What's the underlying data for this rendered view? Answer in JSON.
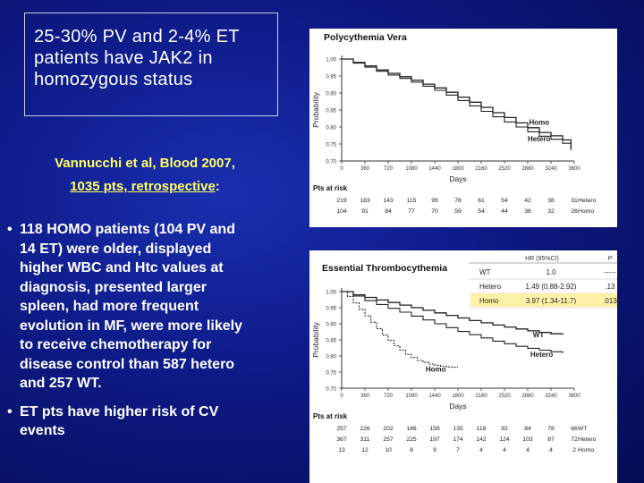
{
  "slide": {
    "title_lines": [
      "25-30% PV and 2-4% ET",
      "patients have JAK2 in",
      "homozygous status"
    ],
    "citation_lines": [
      "Vannucchi et al, Blood 2007,",
      "1035 pts, retrospective"
    ],
    "citation_colon": ":",
    "bullet_marker": "•",
    "bullets": [
      {
        "lines": [
          "118 HOMO patients (104 PV and",
          "14 ET) were older, displayed",
          "higher WBC and Htc values at",
          "diagnosis, presented larger",
          "spleen, had more frequent",
          "evolution in MF, were more likely",
          "to receive chemotherapy for",
          "disease control than 587 hetero",
          "and 257 WT."
        ]
      },
      {
        "lines": [
          "ET pts have higher risk of CV",
          "events"
        ]
      }
    ]
  },
  "chart_data": [
    {
      "type": "line",
      "title": "Polycythemia Vera",
      "xlabel": "Days",
      "ylabel": "Probability",
      "xlim": [
        0,
        3600
      ],
      "ylim": [
        0.7,
        1.0
      ],
      "x_ticks": [
        "0",
        "360",
        "720",
        "1080",
        "1440",
        "1800",
        "2160",
        "2520",
        "2880",
        "3240",
        "3600"
      ],
      "y_ticks": [
        "1.00",
        "0.95",
        "0.90",
        "0.85",
        "0.80",
        "0.75",
        "0.70"
      ],
      "series": [
        {
          "name": "Homo",
          "x": [
            0,
            180,
            360,
            540,
            720,
            900,
            1080,
            1260,
            1440,
            1620,
            1800,
            1980,
            2160,
            2340,
            2520,
            2700,
            2880,
            3060,
            3240,
            3420,
            3550
          ],
          "y": [
            1.0,
            0.99,
            0.98,
            0.968,
            0.958,
            0.948,
            0.938,
            0.926,
            0.915,
            0.902,
            0.888,
            0.873,
            0.858,
            0.842,
            0.828,
            0.812,
            0.798,
            0.784,
            0.774,
            0.762,
            0.732
          ]
        },
        {
          "name": "Hetero",
          "x": [
            0,
            180,
            360,
            540,
            720,
            900,
            1080,
            1260,
            1440,
            1620,
            1800,
            1980,
            2160,
            2340,
            2520,
            2700,
            2880,
            3060,
            3240,
            3420,
            3550
          ],
          "y": [
            1.0,
            0.988,
            0.976,
            0.964,
            0.953,
            0.943,
            0.932,
            0.92,
            0.908,
            0.894,
            0.878,
            0.862,
            0.846,
            0.83,
            0.815,
            0.8,
            0.786,
            0.773,
            0.764,
            0.752,
            0.742
          ]
        }
      ],
      "curve_labels": [
        {
          "text": "Homo",
          "x": 2900,
          "y": 0.807
        },
        {
          "text": "Hetero",
          "x": 2880,
          "y": 0.758
        }
      ],
      "risk_table": {
        "title": "Pts at risk",
        "rows": [
          {
            "label": "Hetero",
            "values": [
              "219",
              "183",
              "143",
              "115",
              "99",
              "78",
              "61",
              "54",
              "42",
              "38",
              "31"
            ]
          },
          {
            "label": "Homo",
            "values": [
              "104",
              "91",
              "84",
              "77",
              "70",
              "59",
              "54",
              "44",
              "36",
              "32",
              "26"
            ]
          }
        ]
      }
    },
    {
      "type": "line",
      "title": "Essential Thrombocythemia",
      "xlabel": "Days",
      "ylabel": "Probability",
      "xlim": [
        0,
        3600
      ],
      "ylim": [
        0.7,
        1.0
      ],
      "x_ticks": [
        "0",
        "360",
        "720",
        "1080",
        "1440",
        "1800",
        "2160",
        "2520",
        "2880",
        "3240",
        "3600"
      ],
      "y_ticks": [
        "1.00",
        "0.95",
        "0.90",
        "0.85",
        "0.80",
        "0.75",
        "0.70"
      ],
      "series": [
        {
          "name": "WT",
          "x": [
            0,
            180,
            360,
            540,
            720,
            900,
            1080,
            1260,
            1440,
            1620,
            1800,
            1980,
            2160,
            2340,
            2520,
            2700,
            2880,
            3060,
            3240,
            3420
          ],
          "y": [
            1.0,
            0.99,
            0.982,
            0.974,
            0.966,
            0.958,
            0.95,
            0.942,
            0.934,
            0.926,
            0.918,
            0.91,
            0.903,
            0.896,
            0.89,
            0.884,
            0.878,
            0.873,
            0.869,
            0.866
          ]
        },
        {
          "name": "Hetero",
          "x": [
            0,
            180,
            360,
            540,
            720,
            900,
            1080,
            1260,
            1440,
            1620,
            1800,
            1980,
            2160,
            2340,
            2520,
            2700,
            2880,
            3060,
            3240,
            3420
          ],
          "y": [
            1.0,
            0.986,
            0.972,
            0.96,
            0.948,
            0.936,
            0.924,
            0.912,
            0.9,
            0.888,
            0.876,
            0.866,
            0.856,
            0.846,
            0.838,
            0.83,
            0.824,
            0.818,
            0.813,
            0.809
          ]
        },
        {
          "name": "Homo",
          "x": [
            0,
            90,
            180,
            270,
            360,
            450,
            540,
            630,
            720,
            810,
            900,
            990,
            1080,
            1170,
            1260,
            1350,
            1440,
            1530,
            1620,
            1710,
            1800
          ],
          "y": [
            1.0,
            0.985,
            0.965,
            0.945,
            0.925,
            0.905,
            0.885,
            0.865,
            0.848,
            0.832,
            0.818,
            0.805,
            0.795,
            0.786,
            0.78,
            0.775,
            0.771,
            0.768,
            0.766,
            0.765,
            0.765
          ]
        }
      ],
      "curve_labels": [
        {
          "text": "WT",
          "x": 2960,
          "y": 0.858
        },
        {
          "text": "Hetero",
          "x": 2920,
          "y": 0.797
        },
        {
          "text": "Homo",
          "x": 1300,
          "y": 0.752
        }
      ],
      "hr_table": {
        "headers": [
          "",
          "HR (95%CI)",
          "P"
        ],
        "rows": [
          {
            "label": "WT",
            "hr": "1.0",
            "p": "-----"
          },
          {
            "label": "Hetero",
            "hr": "1.49 (0.88-2.92)",
            "p": ".13"
          },
          {
            "label": "Homo",
            "hr": "3.97 (1.34-11.7)",
            "p": ".013",
            "highlight": true
          }
        ],
        "highlight_color": "#fff2a8"
      },
      "risk_table": {
        "title": "Pts at risk",
        "rows": [
          {
            "label": "WT",
            "values": [
              "257",
              "226",
              "202",
              "186",
              "159",
              "135",
              "118",
              "92",
              "84",
              "78",
              "66"
            ]
          },
          {
            "label": "Hetero",
            "values": [
              "367",
              "311",
              "257",
              "225",
              "197",
              "174",
              "142",
              "124",
              "103",
              "87",
              "72"
            ]
          },
          {
            "label": "Homo",
            "values": [
              "13",
              "12",
              "10",
              "8",
              "9",
              "7",
              "4",
              "4",
              "4",
              "4",
              "2"
            ]
          }
        ]
      }
    }
  ],
  "colors": {
    "background": "#0d1a86",
    "title_text": "#ffffff",
    "citation_text": "#ffff66",
    "bullet_text": "#ffffff",
    "chart_line": "#222222"
  }
}
